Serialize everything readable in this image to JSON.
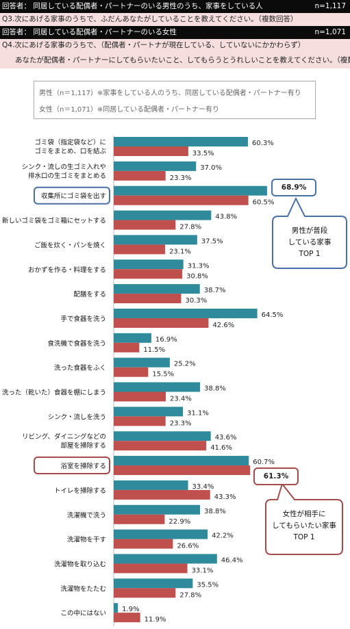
{
  "header": {
    "line1": {
      "label": "回答者： 同居している配偶者・パートナーのいる男性のうち、家事をしている人",
      "n": "n=1,117"
    },
    "line2": {
      "label": "Q3.次にあげる家事のうちで、ふだんあなたがしていることを教えてください。（複数回答）"
    },
    "line3": {
      "label": "回答者： 同居している配偶者・パートナーのいる女性",
      "n": "n=1,071"
    },
    "line4": {
      "label": "Q4.次にあげる家事のうちで、（配偶者・パートナが現在している、していないにかかわらず）"
    },
    "line5": {
      "label": "あなたが配偶者・パートナーにしてもらいたいこと、してもらうとうれしいことを教えてください。（複数回答）"
    }
  },
  "legend": {
    "male": "男性（n＝1,117）※家事をしている人のうち、同居している配偶者・パートナー有り",
    "female": "女性（n＝1,071）※同居している配偶者・パートナー有り"
  },
  "callouts": {
    "male": {
      "value": "68.9%",
      "text_lines": [
        "男性が普段",
        "している家事",
        "TOP 1"
      ]
    },
    "female": {
      "value": "61.3%",
      "text_lines": [
        "女性が相手に",
        "してもらいたい家事",
        "TOP 1"
      ]
    }
  },
  "colors": {
    "male": "#2f8a9c",
    "female": "#c0504d",
    "male_callout": "#4a6fa5",
    "female_callout": "#a34b4b"
  },
  "chart_data": {
    "type": "bar",
    "orientation": "horizontal",
    "categories": [
      [
        "ゴミ袋（指定袋など）に",
        "ゴミをまとめ、口を結ぶ"
      ],
      [
        "シンク・流しの生ゴミ入れや",
        "排水口の生ゴミをまとめる"
      ],
      [
        "収集所にゴミ袋を出す"
      ],
      [
        "新しいゴミ袋をゴミ箱にセットする"
      ],
      [
        "ご飯を炊く・パンを焼く"
      ],
      [
        "おかずを作る・料理をする"
      ],
      [
        "配膳をする"
      ],
      [
        "手で食器を洗う"
      ],
      [
        "食洗機で食器を洗う"
      ],
      [
        "洗った食器をふく"
      ],
      [
        "洗った（乾いた）食器を棚にしまう"
      ],
      [
        "シンク・流しを洗う"
      ],
      [
        "リビング、ダイニングなどの",
        "部屋を掃除する"
      ],
      [
        "浴室を掃除する"
      ],
      [
        "トイレを掃除する"
      ],
      [
        "洗濯機で洗う"
      ],
      [
        "洗濯物を干す"
      ],
      [
        "洗濯物を取り込む"
      ],
      [
        "洗濯物をたたむ"
      ],
      [
        "この中にはない"
      ]
    ],
    "series": [
      {
        "name": "男性",
        "values": [
          60.3,
          37.0,
          68.9,
          43.8,
          37.5,
          31.3,
          38.7,
          64.5,
          16.9,
          25.2,
          38.8,
          31.1,
          43.6,
          60.7,
          33.4,
          38.8,
          42.2,
          46.4,
          35.5,
          1.9
        ]
      },
      {
        "name": "女性",
        "values": [
          33.5,
          23.3,
          60.5,
          27.8,
          23.1,
          30.8,
          30.3,
          42.6,
          11.5,
          15.5,
          23.4,
          23.3,
          41.6,
          61.3,
          43.3,
          22.9,
          26.6,
          33.1,
          27.8,
          11.9
        ]
      }
    ],
    "highlight_categories": [
      2,
      13
    ],
    "xlim": [
      0,
      100
    ]
  }
}
